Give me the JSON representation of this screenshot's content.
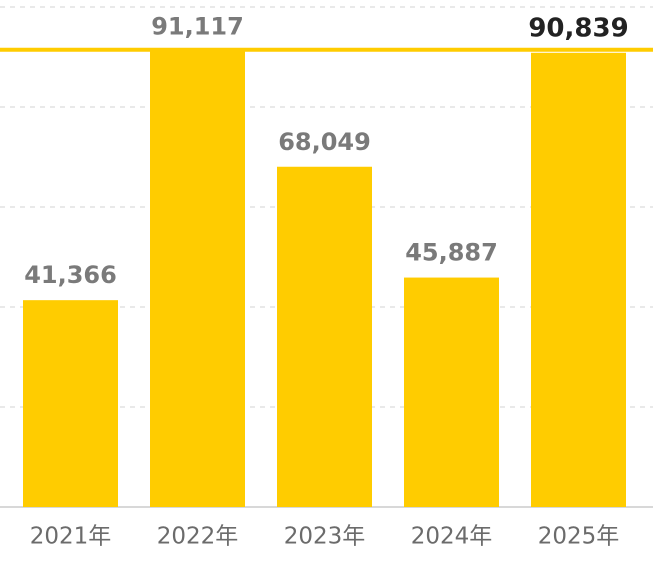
{
  "chart_data": {
    "type": "bar",
    "categories": [
      "2021年",
      "2022年",
      "2023年",
      "2024年",
      "2025年"
    ],
    "values": [
      41366,
      91117,
      68049,
      45887,
      90839
    ],
    "value_labels": [
      "41,366",
      "91,117",
      "68,049",
      "45,887",
      "90,839"
    ],
    "color": "#ffcc00",
    "ylim": [
      0,
      101400
    ],
    "yticks": [
      0,
      20000,
      40000,
      60000,
      80000,
      100000
    ],
    "grid": true
  }
}
